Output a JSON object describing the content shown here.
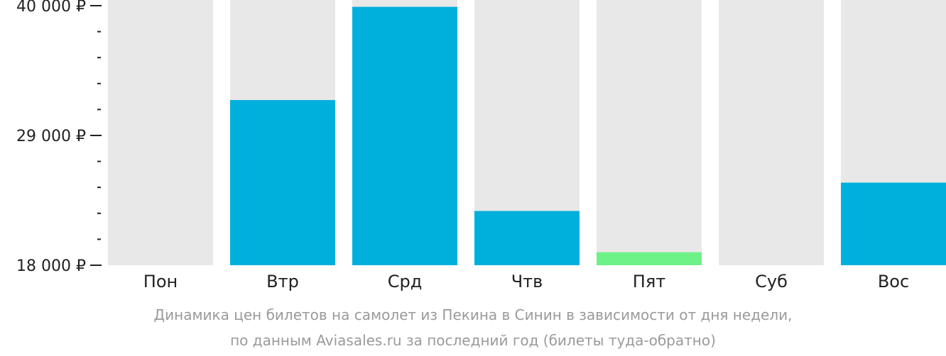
{
  "chart_data": {
    "type": "bar",
    "categories": [
      "Пон",
      "Втр",
      "Срд",
      "Чтв",
      "Пят",
      "Суб",
      "Вос"
    ],
    "values": [
      null,
      32000,
      39900,
      22600,
      19100,
      null,
      25000
    ],
    "highlight": [
      false,
      false,
      false,
      false,
      true,
      false,
      false
    ],
    "ylim": [
      18000,
      40000
    ],
    "y_ticks": [
      {
        "value": 40000,
        "label": "40 000 ₽"
      },
      {
        "value": 29000,
        "label": "29 000 ₽"
      },
      {
        "value": 18000,
        "label": "18 000 ₽"
      }
    ],
    "y_minor_step": 2200,
    "title": "",
    "xlabel": "",
    "ylabel": "",
    "colors": {
      "bar": "#00b0dc",
      "bar_highlight": "#6cf287",
      "background_bar": "#e8e8e8",
      "axis": "#222222"
    }
  },
  "caption": {
    "line1": "Динамика цен билетов на самолет из Пекина в Синин в зависимости от дня недели,",
    "line2": "по данным Aviasales.ru за последний год (билеты туда-обратно)"
  }
}
